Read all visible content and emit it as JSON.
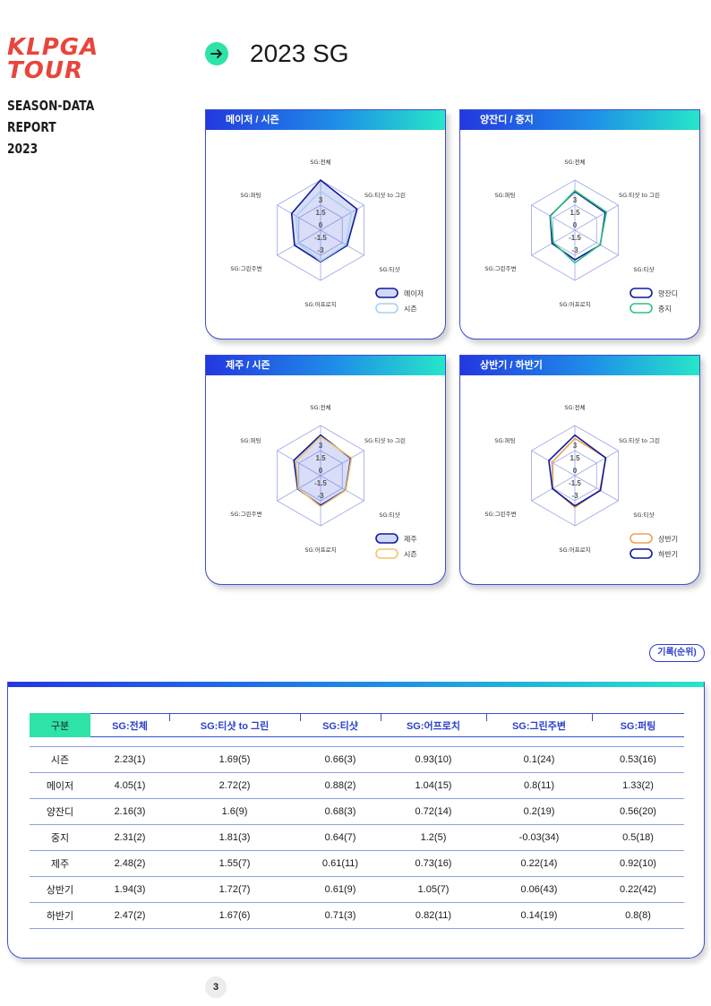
{
  "brand": {
    "line1": "KLPGA",
    "line2": "TOUR",
    "sub1": "SEASON-DATA",
    "sub2": "REPORT",
    "sub3": "2023"
  },
  "heading": {
    "icon": "arrow-right-icon",
    "title": "2023 SG"
  },
  "colors": {
    "accent": "#2de3a8",
    "blue": "#2a3fce",
    "logo": "#e8453c"
  },
  "chart_data": [
    {
      "type": "radar",
      "title": "메이저 / 시즌",
      "axes": [
        "SG:전체",
        "SG:티샷 to 그린",
        "SG:티샷",
        "SG:어프로치",
        "SG:그린주변",
        "SG:퍼팅"
      ],
      "tick_labels": [
        "3",
        "1.5",
        "0",
        "-1.5",
        "-3"
      ],
      "series": [
        {
          "name": "메이저",
          "values": [
            4.05,
            2.72,
            0.88,
            1.04,
            0.8,
            1.33
          ],
          "color": "#0d1a9e",
          "fill": "rgba(80,100,220,0.22)"
        },
        {
          "name": "시즌",
          "values": [
            2.23,
            1.69,
            0.66,
            0.93,
            0.1,
            0.53
          ],
          "color": "#aacfee",
          "fill": "none"
        }
      ]
    },
    {
      "type": "radar",
      "title": "양잔디 / 중지",
      "axes": [
        "SG:전체",
        "SG:티샷 to 그린",
        "SG:티샷",
        "SG:어프로치",
        "SG:그린주변",
        "SG:퍼팅"
      ],
      "tick_labels": [
        "3",
        "1.5",
        "0",
        "-1.5",
        "-3"
      ],
      "series": [
        {
          "name": "양잔디",
          "values": [
            2.16,
            1.6,
            0.68,
            0.72,
            0.2,
            0.56
          ],
          "color": "#0d1a9e",
          "fill": "none"
        },
        {
          "name": "중지",
          "values": [
            2.31,
            1.81,
            0.64,
            1.2,
            -0.03,
            0.5
          ],
          "color": "#2ec47c",
          "fill": "none"
        }
      ]
    },
    {
      "type": "radar",
      "title": "제주 / 시즌",
      "axes": [
        "SG:전체",
        "SG:티샷 to 그린",
        "SG:티샷",
        "SG:어프로치",
        "SG:그린주변",
        "SG:퍼팅"
      ],
      "tick_labels": [
        "3",
        "1.5",
        "0",
        "-1.5",
        "-3"
      ],
      "series": [
        {
          "name": "제주",
          "values": [
            2.48,
            1.55,
            0.61,
            0.73,
            0.22,
            0.92
          ],
          "color": "#0d1a9e",
          "fill": "rgba(80,100,220,0.22)"
        },
        {
          "name": "시즌",
          "values": [
            2.23,
            1.69,
            0.66,
            0.93,
            0.1,
            0.53
          ],
          "color": "#f2c46a",
          "fill": "none"
        }
      ]
    },
    {
      "type": "radar",
      "title": "상반기 / 하반기",
      "axes": [
        "SG:전체",
        "SG:티샷 to 그린",
        "SG:티샷",
        "SG:어프로치",
        "SG:그린주변",
        "SG:퍼팅"
      ],
      "tick_labels": [
        "3",
        "1.5",
        "0",
        "-1.5",
        "-3"
      ],
      "series": [
        {
          "name": "상반기",
          "values": [
            1.94,
            1.72,
            0.61,
            1.05,
            0.06,
            0.22
          ],
          "color": "#f0a050",
          "fill": "none"
        },
        {
          "name": "하반기",
          "values": [
            2.47,
            1.67,
            0.71,
            0.82,
            0.14,
            0.8
          ],
          "color": "#0d1a9e",
          "fill": "none"
        }
      ]
    }
  ],
  "record_label": "기록(순위)",
  "table": {
    "headers": [
      "구분",
      "SG:전체",
      "SG:티샷 to 그린",
      "SG:티샷",
      "SG:어프로치",
      "SG:그린주변",
      "SG:퍼팅"
    ],
    "rows": [
      [
        "시즌",
        "2.23(1)",
        "1.69(5)",
        "0.66(3)",
        "0.93(10)",
        "0.1(24)",
        "0.53(16)"
      ],
      [
        "메이저",
        "4.05(1)",
        "2.72(2)",
        "0.88(2)",
        "1.04(15)",
        "0.8(11)",
        "1.33(2)"
      ],
      [
        "양잔디",
        "2.16(3)",
        "1.6(9)",
        "0.68(3)",
        "0.72(14)",
        "0.2(19)",
        "0.56(20)"
      ],
      [
        "중지",
        "2.31(2)",
        "1.81(3)",
        "0.64(7)",
        "1.2(5)",
        "-0.03(34)",
        "0.5(18)"
      ],
      [
        "제주",
        "2.48(2)",
        "1.55(7)",
        "0.61(11)",
        "0.73(16)",
        "0.22(14)",
        "0.92(10)"
      ],
      [
        "상반기",
        "1.94(3)",
        "1.72(7)",
        "0.61(9)",
        "1.05(7)",
        "0.06(43)",
        "0.22(42)"
      ],
      [
        "하반기",
        "2.47(2)",
        "1.67(6)",
        "0.71(3)",
        "0.82(11)",
        "0.14(19)",
        "0.8(8)"
      ]
    ]
  },
  "page_number": "3"
}
